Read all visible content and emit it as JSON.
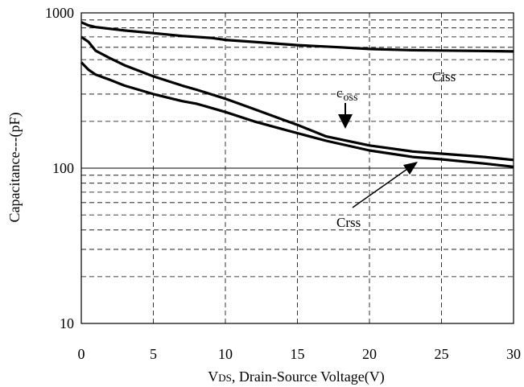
{
  "chart_data": {
    "type": "line",
    "xlabel": "VDS, Drain-Source Voltage(V)",
    "xlabel_parts": {
      "main": "V",
      "sub": "DS",
      "rest": ", Drain-Source Voltage(V)"
    },
    "ylabel": "Capacitance---(pF)",
    "xlim": [
      0,
      30
    ],
    "ylim": [
      10,
      1000
    ],
    "yscale": "log",
    "grid": "dashed",
    "x_ticks": [
      "0",
      "5",
      "10",
      "15",
      "20",
      "25",
      "30"
    ],
    "y_ticks": [
      "10",
      "100",
      "1000"
    ],
    "series": [
      {
        "name": "Ciss",
        "x": [
          0,
          0.5,
          1,
          2,
          3,
          5,
          7,
          9,
          10,
          12,
          15,
          18,
          20,
          23,
          25,
          28,
          30
        ],
        "y": [
          870,
          830,
          810,
          790,
          770,
          740,
          710,
          690,
          670,
          650,
          620,
          600,
          585,
          575,
          572,
          568,
          565
        ]
      },
      {
        "name": "Coss",
        "x": [
          0,
          0.5,
          1,
          2,
          3,
          5,
          7,
          8,
          10,
          12,
          14,
          15,
          17,
          20,
          23,
          25,
          28,
          30
        ],
        "y": [
          700,
          650,
          570,
          510,
          460,
          390,
          340,
          320,
          280,
          240,
          205,
          190,
          160,
          140,
          128,
          124,
          118,
          113
        ]
      },
      {
        "name": "Crss",
        "x": [
          0,
          0.5,
          1,
          2,
          3,
          5,
          7,
          8,
          10,
          12,
          14,
          15,
          17,
          20,
          23,
          25,
          28,
          30
        ],
        "y": [
          480,
          430,
          400,
          370,
          340,
          300,
          270,
          260,
          230,
          200,
          178,
          168,
          150,
          130,
          118,
          114,
          107,
          102
        ]
      }
    ],
    "annotations": [
      {
        "text": "Ciss",
        "target_series": "Ciss"
      },
      {
        "text": "c",
        "sub": "oss",
        "target_series": "Coss"
      },
      {
        "text": "Crss",
        "target_series": "Crss"
      }
    ]
  }
}
